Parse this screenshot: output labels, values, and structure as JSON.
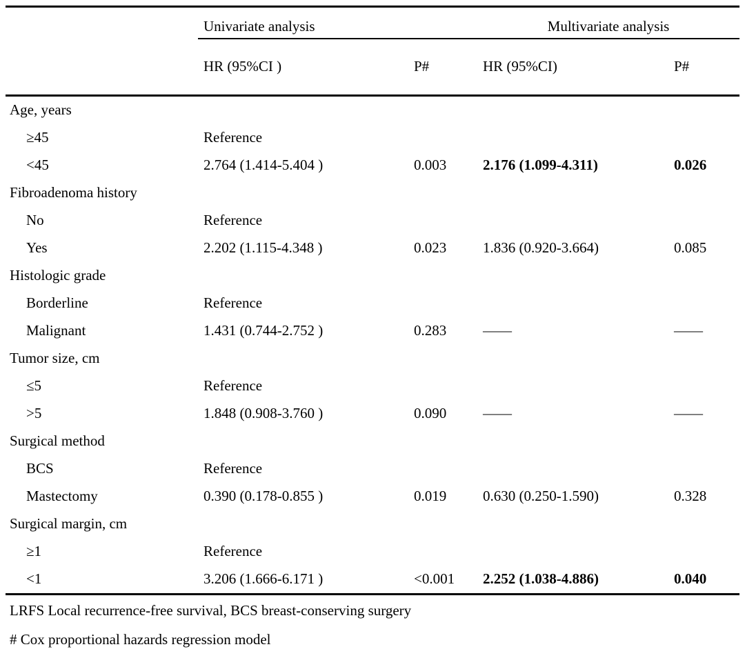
{
  "table": {
    "group_headers": {
      "univariate": "Univariate analysis",
      "multivariate": "Multivariate analysis"
    },
    "columns": {
      "uni_hr": "HR (95%CI )",
      "uni_p": "P#",
      "multi_hr": "HR (95%CI)",
      "multi_p": "P#"
    },
    "rows": [
      {
        "label": "Age, years",
        "category": true
      },
      {
        "label": "≥45",
        "uni_hr": "Reference"
      },
      {
        "label": "<45",
        "uni_hr": "2.764 (1.414-5.404 )",
        "uni_p": "0.003",
        "multi_hr": "2.176 (1.099-4.311)",
        "multi_p": "0.026",
        "emphasis": true
      },
      {
        "label": "Fibroadenoma history",
        "category": true
      },
      {
        "label": "No",
        "uni_hr": "Reference"
      },
      {
        "label": "Yes",
        "uni_hr": "2.202 (1.115-4.348 )",
        "uni_p": "0.023",
        "multi_hr": "1.836 (0.920-3.664)",
        "multi_p": "0.085"
      },
      {
        "label": "Histologic grade",
        "category": true
      },
      {
        "label": "Borderline",
        "uni_hr": "Reference"
      },
      {
        "label": "Malignant",
        "uni_hr": "1.431 (0.744-2.752 )",
        "uni_p": "0.283",
        "multi_hr": "——",
        "multi_p": "——"
      },
      {
        "label": "Tumor size, cm",
        "category": true
      },
      {
        "label": "≤5",
        "uni_hr": "Reference"
      },
      {
        "label": ">5",
        "uni_hr": "1.848 (0.908-3.760 )",
        "uni_p": "0.090",
        "multi_hr": "——",
        "multi_p": "——"
      },
      {
        "label": "Surgical method",
        "category": true
      },
      {
        "label": "BCS",
        "uni_hr": "Reference"
      },
      {
        "label": "Mastectomy",
        "uni_hr": "0.390 (0.178-0.855 )",
        "uni_p": "0.019",
        "multi_hr": "0.630 (0.250-1.590)",
        "multi_p": "0.328"
      },
      {
        "label": "Surgical margin, cm",
        "category": true
      },
      {
        "label": "≥1",
        "uni_hr": "Reference"
      },
      {
        "label": "<1",
        "uni_hr": "3.206 (1.666-6.171 )",
        "uni_p": "<0.001",
        "multi_hr": "2.252 (1.038-4.886)",
        "multi_p": "0.040",
        "emphasis": true
      }
    ],
    "footnotes": {
      "abbreviations": "LRFS Local recurrence-free survival, BCS breast-conserving surgery",
      "model": "# Cox proportional hazards regression model"
    }
  }
}
